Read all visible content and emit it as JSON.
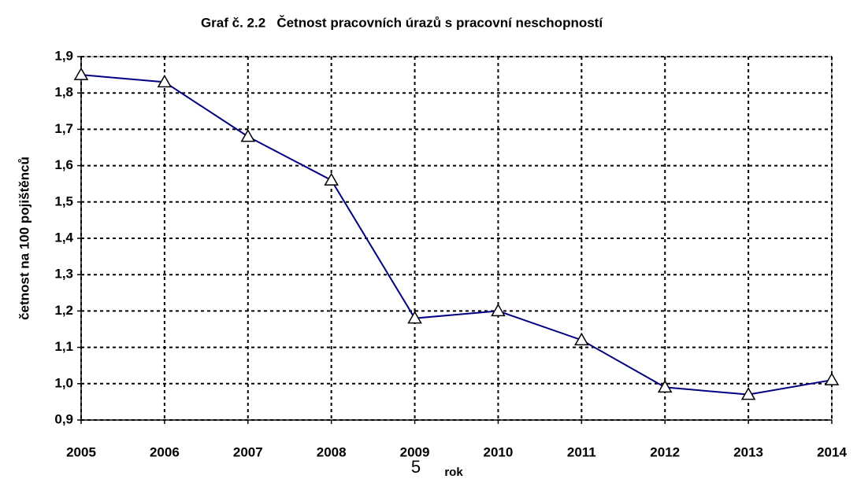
{
  "chart_data": {
    "type": "line",
    "title": "Graf č. 2.2   Četnost pracovních úrazů s pracovní neschopností",
    "x_label": "rok",
    "y_label": "četnost na 100 pojištěnců",
    "x": [
      2005,
      2006,
      2007,
      2008,
      2009,
      2010,
      2011,
      2012,
      2013,
      2014
    ],
    "series": [
      {
        "color": "#000080",
        "values": [
          1.85,
          1.83,
          1.68,
          1.56,
          1.18,
          1.2,
          1.12,
          0.99,
          0.97,
          1.01
        ]
      }
    ],
    "xlim": [
      2005,
      2014
    ],
    "xticks": [
      2005,
      2006,
      2007,
      2008,
      2009,
      2010,
      2011,
      2012,
      2013,
      2014
    ],
    "ylim": [
      0.9,
      1.9
    ],
    "yticks": [
      {
        "value": 0.9,
        "label": "0,9"
      },
      {
        "value": 1.0,
        "label": "1,0"
      },
      {
        "value": 1.1,
        "label": "1,1"
      },
      {
        "value": 1.2,
        "label": "1,2"
      },
      {
        "value": 1.3,
        "label": "1,3"
      },
      {
        "value": 1.4,
        "label": "1,4"
      },
      {
        "value": 1.5,
        "label": "1,5"
      },
      {
        "value": 1.6,
        "label": "1,6"
      },
      {
        "value": 1.7,
        "label": "1,7"
      },
      {
        "value": 1.8,
        "label": "1,8"
      },
      {
        "value": 1.9,
        "label": "1,9"
      }
    ],
    "grid": true
  },
  "page_number": "5"
}
